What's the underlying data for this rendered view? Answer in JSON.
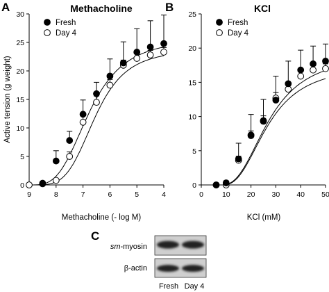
{
  "panels": [
    {
      "letter": "A"
    },
    {
      "letter": "B"
    },
    {
      "letter": "C"
    }
  ],
  "chart_data": [
    {
      "type": "line",
      "title": "Methacholine",
      "xlabel": "Methacholine (- log M)",
      "ylabel": "Active tension (g weight)",
      "xlim": [
        9,
        4
      ],
      "ylim": [
        0,
        30
      ],
      "x_reversed": true,
      "x_ticks": [
        9,
        8,
        7,
        6,
        5,
        4
      ],
      "y_ticks": [
        0,
        5,
        10,
        15,
        20,
        25,
        30
      ],
      "legend_position": "top-left",
      "grid": false,
      "series": [
        {
          "name": "Fresh",
          "marker": "filled-circle",
          "x": [
            8.5,
            8.0,
            7.5,
            7.0,
            6.5,
            6.0,
            5.5,
            5.0,
            4.5,
            4.0
          ],
          "y": [
            0.3,
            4.2,
            7.8,
            12.4,
            16.0,
            19.1,
            21.4,
            23.3,
            24.2,
            24.8
          ],
          "error": [
            0.3,
            1.8,
            1.6,
            2.5,
            2.0,
            3.0,
            3.7,
            4.1,
            4.6,
            5.0
          ]
        },
        {
          "name": "Day 4",
          "marker": "open-circle",
          "x": [
            9.0,
            8.5,
            8.0,
            7.5,
            7.0,
            6.5,
            6.0,
            5.5,
            5.0,
            4.5,
            4.0
          ],
          "y": [
            0.0,
            0.2,
            0.8,
            5.0,
            11.0,
            14.5,
            17.5,
            21.0,
            22.2,
            22.8,
            23.3
          ],
          "error": [
            0.0,
            0.2,
            0.3,
            0.8,
            1.2,
            1.1,
            1.0,
            0.9,
            0.8,
            0.8,
            0.8
          ]
        }
      ]
    },
    {
      "type": "line",
      "title": "KCl",
      "xlabel": "KCl (mM)",
      "ylabel": "",
      "xlim": [
        0,
        50
      ],
      "ylim": [
        0,
        25
      ],
      "x_ticks": [
        0,
        10,
        20,
        30,
        40,
        50
      ],
      "y_ticks": [
        0,
        5,
        10,
        15,
        20,
        25
      ],
      "legend_position": "top-left",
      "grid": false,
      "series": [
        {
          "name": "Fresh",
          "marker": "filled-circle",
          "x": [
            6,
            10,
            15,
            20,
            25,
            30,
            35,
            40,
            45,
            50
          ],
          "y": [
            0.0,
            0.3,
            3.8,
            7.3,
            9.4,
            12.4,
            14.8,
            16.8,
            17.7,
            18.1
          ],
          "error": [
            0.0,
            0.3,
            2.3,
            3.0,
            3.1,
            3.5,
            3.3,
            2.9,
            2.6,
            2.5
          ]
        },
        {
          "name": "Day 4",
          "marker": "open-circle",
          "x": [
            6,
            10,
            15,
            20,
            25,
            30,
            35,
            40,
            45,
            50
          ],
          "y": [
            0.0,
            0.0,
            3.6,
            7.2,
            9.3,
            12.7,
            14.0,
            15.9,
            16.8,
            17.0
          ],
          "error": [
            0.0,
            0.0,
            0.6,
            0.7,
            0.8,
            0.8,
            0.8,
            0.8,
            0.7,
            0.7
          ]
        }
      ]
    }
  ],
  "blot": {
    "rows": [
      {
        "prefix": "sm",
        "suffix": "-myosin"
      },
      {
        "prefix": "β-actin",
        "suffix": ""
      }
    ],
    "lanes": [
      "Fresh",
      "Day 4"
    ],
    "colors": {
      "band": "#222222",
      "background": "#c9c9c9"
    }
  }
}
